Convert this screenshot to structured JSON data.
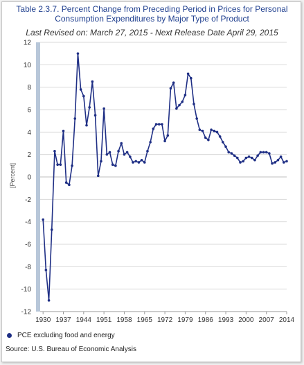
{
  "chart_data": {
    "type": "line",
    "title_line1": "Table 2.3.7. Percent Change from Preceding Period in Prices for Personal",
    "title_line2": "Consumption Expenditures by Major Type of Product",
    "subtitle": "Last Revised on: March 27, 2015 - Next Release Date April 29, 2015",
    "ylabel": "[Percent]",
    "xlabel": "",
    "ylim": [
      -12,
      12
    ],
    "xlim": [
      1929,
      2014
    ],
    "yticks": [
      "12",
      "10",
      "8",
      "6",
      "4",
      "2",
      "0",
      "-2",
      "-4",
      "-6",
      "-8",
      "-10",
      "-12"
    ],
    "xticks": [
      "1930",
      "1937",
      "1944",
      "1951",
      "1958",
      "1965",
      "1972",
      "1979",
      "1986",
      "1993",
      "2000",
      "2007",
      "2014"
    ],
    "grid": "horizontal",
    "legend_position": "bottom-left",
    "series": [
      {
        "name": "PCE excluding food and energy",
        "color": "#1f2f85",
        "x": [
          1930,
          1931,
          1932,
          1933,
          1934,
          1935,
          1936,
          1937,
          1938,
          1939,
          1940,
          1941,
          1942,
          1943,
          1944,
          1945,
          1946,
          1947,
          1948,
          1949,
          1950,
          1951,
          1952,
          1953,
          1954,
          1955,
          1956,
          1957,
          1958,
          1959,
          1960,
          1961,
          1962,
          1963,
          1964,
          1965,
          1966,
          1967,
          1968,
          1969,
          1970,
          1971,
          1972,
          1973,
          1974,
          1975,
          1976,
          1977,
          1978,
          1979,
          1980,
          1981,
          1982,
          1983,
          1984,
          1985,
          1986,
          1987,
          1988,
          1989,
          1990,
          1991,
          1992,
          1993,
          1994,
          1995,
          1996,
          1997,
          1998,
          1999,
          2000,
          2001,
          2002,
          2003,
          2004,
          2005,
          2006,
          2007,
          2008,
          2009,
          2010,
          2011,
          2012,
          2013,
          2014
        ],
        "values": [
          -3.8,
          -8.3,
          -11,
          -4.7,
          2.3,
          1.1,
          1.1,
          4.1,
          -0.5,
          -0.7,
          1.0,
          5.2,
          11.0,
          7.8,
          7.2,
          4.6,
          6.2,
          8.5,
          5.5,
          0.1,
          1.4,
          6.1,
          2.0,
          2.2,
          1.1,
          1.0,
          2.3,
          3.0,
          2.0,
          2.2,
          1.8,
          1.3,
          1.4,
          1.3,
          1.5,
          1.3,
          2.3,
          3.1,
          4.3,
          4.7,
          4.7,
          4.7,
          3.2,
          3.7,
          7.9,
          8.4,
          6.1,
          6.4,
          6.7,
          7.3,
          9.2,
          8.8,
          6.5,
          5.2,
          4.2,
          4.1,
          3.5,
          3.3,
          4.2,
          4.1,
          4.0,
          3.6,
          3.1,
          2.7,
          2.2,
          2.1,
          1.9,
          1.7,
          1.3,
          1.4,
          1.7,
          1.8,
          1.7,
          1.5,
          1.9,
          2.2,
          2.2,
          2.2,
          2.1,
          1.2,
          1.3,
          1.5,
          1.8,
          1.3,
          1.4
        ]
      }
    ]
  },
  "source": "Source: U.S. Bureau of Economic  Analysis"
}
